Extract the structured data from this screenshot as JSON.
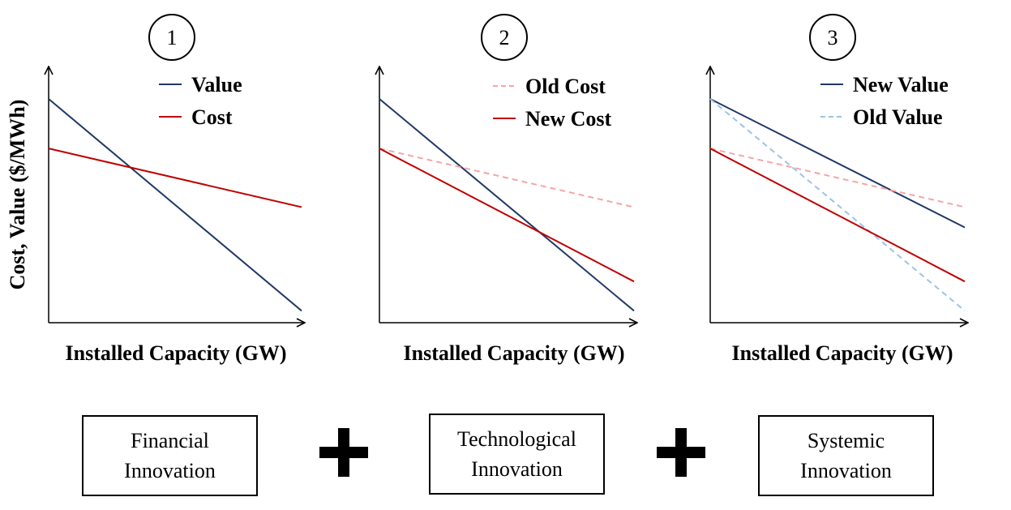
{
  "y_axis_label": "Cost, Value ($/MWh)",
  "panels": [
    {
      "number": "1",
      "x_label": "Installed Capacity (GW)",
      "legend": [
        {
          "label": "Value",
          "color": "#1f3864",
          "dashed": false
        },
        {
          "label": "Cost",
          "color": "#c00000",
          "dashed": false
        }
      ]
    },
    {
      "number": "2",
      "x_label": "Installed Capacity (GW)",
      "legend": [
        {
          "label": "Old Cost",
          "color": "#f4a6a6",
          "dashed": true
        },
        {
          "label": "New Cost",
          "color": "#c00000",
          "dashed": false
        }
      ]
    },
    {
      "number": "3",
      "x_label": "Installed Capacity (GW)",
      "legend": [
        {
          "label": "New Value",
          "color": "#1f3864",
          "dashed": false
        },
        {
          "label": "Old Value",
          "color": "#9dc3e6",
          "dashed": true
        }
      ]
    }
  ],
  "chart_data": [
    {
      "type": "line",
      "x": [
        0,
        1
      ],
      "series": [
        {
          "name": "Value",
          "values": [
            1.0,
            0.06
          ],
          "color": "#1f3864",
          "dashed": false
        },
        {
          "name": "Cost",
          "values": [
            0.78,
            0.52
          ],
          "color": "#c00000",
          "dashed": false
        }
      ],
      "xlabel": "Installed Capacity (GW)",
      "ylabel": "Cost, Value ($/MWh)",
      "ylim": [
        0,
        1.1
      ]
    },
    {
      "type": "line",
      "x": [
        0,
        1
      ],
      "series": [
        {
          "name": "Value",
          "values": [
            1.0,
            0.06
          ],
          "color": "#1f3864",
          "dashed": false
        },
        {
          "name": "Old Cost",
          "values": [
            0.78,
            0.52
          ],
          "color": "#f4a6a6",
          "dashed": true
        },
        {
          "name": "New Cost",
          "values": [
            0.78,
            0.19
          ],
          "color": "#c00000",
          "dashed": false
        }
      ],
      "xlabel": "Installed Capacity (GW)",
      "ylim": [
        0,
        1.1
      ]
    },
    {
      "type": "line",
      "x": [
        0,
        1
      ],
      "series": [
        {
          "name": "New Value",
          "values": [
            1.0,
            0.43
          ],
          "color": "#1f3864",
          "dashed": false
        },
        {
          "name": "Old Value",
          "values": [
            1.0,
            0.06
          ],
          "color": "#9dc3e6",
          "dashed": true
        },
        {
          "name": "Old Cost",
          "values": [
            0.78,
            0.52
          ],
          "color": "#f4a6a6",
          "dashed": true
        },
        {
          "name": "New Cost",
          "values": [
            0.78,
            0.19
          ],
          "color": "#c00000",
          "dashed": false
        }
      ],
      "xlabel": "Installed Capacity (GW)",
      "ylim": [
        0,
        1.1
      ]
    }
  ],
  "boxes": [
    {
      "line1": "Financial",
      "line2": "Innovation"
    },
    {
      "line1": "Technological",
      "line2": "Innovation"
    },
    {
      "line1": "Systemic",
      "line2": "Innovation"
    }
  ],
  "operators": [
    "+",
    "+"
  ]
}
